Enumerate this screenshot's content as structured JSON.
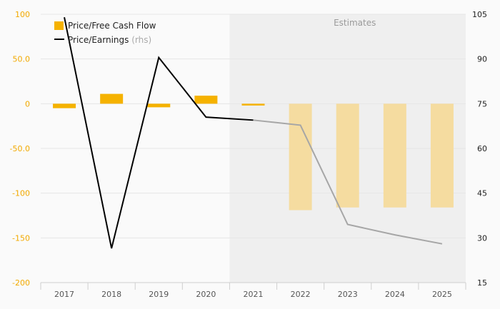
{
  "colors": {
    "background": "#fafafa",
    "estimate_shade": "#efefef",
    "bar_actual": "#f5b200",
    "bar_estimate": "#f5dca0",
    "line_actual": "#000000",
    "line_estimate": "#a6a6a6",
    "left_axis_text": "#f2a900",
    "right_axis_text": "#222222"
  },
  "chart_data": {
    "type": "bar",
    "categories": [
      "2017",
      "2018",
      "2019",
      "2020",
      "2021",
      "2022",
      "2023",
      "2024",
      "2025"
    ],
    "estimates_start": "2021",
    "estimates_label": "Estimates",
    "legend": {
      "bar_label": "Price/Free Cash Flow",
      "line_label": "Price/Earnings",
      "line_sublabel": "(rhs)",
      "placement": "top-left"
    },
    "left_axis": {
      "ylim": [
        -200,
        100
      ],
      "ticks": [
        100,
        50,
        0,
        -50,
        -100,
        -150,
        -200
      ],
      "tick_labels": [
        "100",
        "50.0",
        "0",
        "-50.0",
        "-100",
        "-150",
        "-200"
      ]
    },
    "right_axis": {
      "ylim": [
        15,
        105
      ],
      "ticks": [
        105,
        90,
        75,
        60,
        45,
        30,
        15
      ],
      "tick_labels": [
        "105",
        "90",
        "75",
        "60",
        "45",
        "30",
        "15"
      ]
    },
    "series": [
      {
        "name": "Price/Free Cash Flow",
        "type": "bar",
        "axis": "left",
        "values": [
          -5,
          11,
          -4,
          9,
          -2,
          -119,
          -116,
          -116,
          -116
        ]
      },
      {
        "name": "Price/Earnings",
        "type": "line",
        "axis": "right",
        "values": [
          104,
          26.5,
          90.5,
          70.5,
          69.5,
          67.8,
          34.5,
          31,
          28
        ]
      }
    ],
    "grid": true
  }
}
